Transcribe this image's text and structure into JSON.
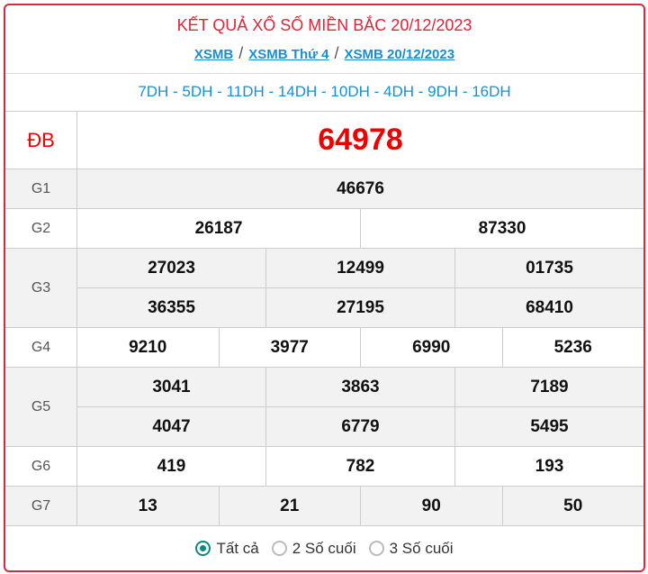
{
  "title": "KẾT QUẢ XỔ SỐ MIỀN BẮC 20/12/2023",
  "breadcrumbs": [
    "XSMB",
    "XSMB Thứ 4",
    "XSMB 20/12/2023"
  ],
  "separator": "/",
  "codes": "7DH - 5DH - 11DH - 14DH - 10DH - 4DH - 9DH - 16DH",
  "prizes": {
    "db": {
      "label": "ĐB",
      "values": [
        "64978"
      ]
    },
    "g1": {
      "label": "G1",
      "values": [
        "46676"
      ]
    },
    "g2": {
      "label": "G2",
      "values": [
        "26187",
        "87330"
      ]
    },
    "g3": {
      "label": "G3",
      "values": [
        "27023",
        "12499",
        "01735",
        "36355",
        "27195",
        "68410"
      ]
    },
    "g4": {
      "label": "G4",
      "values": [
        "9210",
        "3977",
        "6990",
        "5236"
      ]
    },
    "g5": {
      "label": "G5",
      "values": [
        "3041",
        "3863",
        "7189",
        "4047",
        "6779",
        "5495"
      ]
    },
    "g6": {
      "label": "G6",
      "values": [
        "419",
        "782",
        "193"
      ]
    },
    "g7": {
      "label": "G7",
      "values": [
        "13",
        "21",
        "90",
        "50"
      ]
    }
  },
  "filter": {
    "options": [
      "Tất cả",
      "2 Số cuối",
      "3 Số cuối"
    ],
    "selected": "Tất cả"
  },
  "colors": {
    "accent": "#d8283a",
    "link": "#1a8fd0",
    "radio": "#0d8a7d"
  }
}
